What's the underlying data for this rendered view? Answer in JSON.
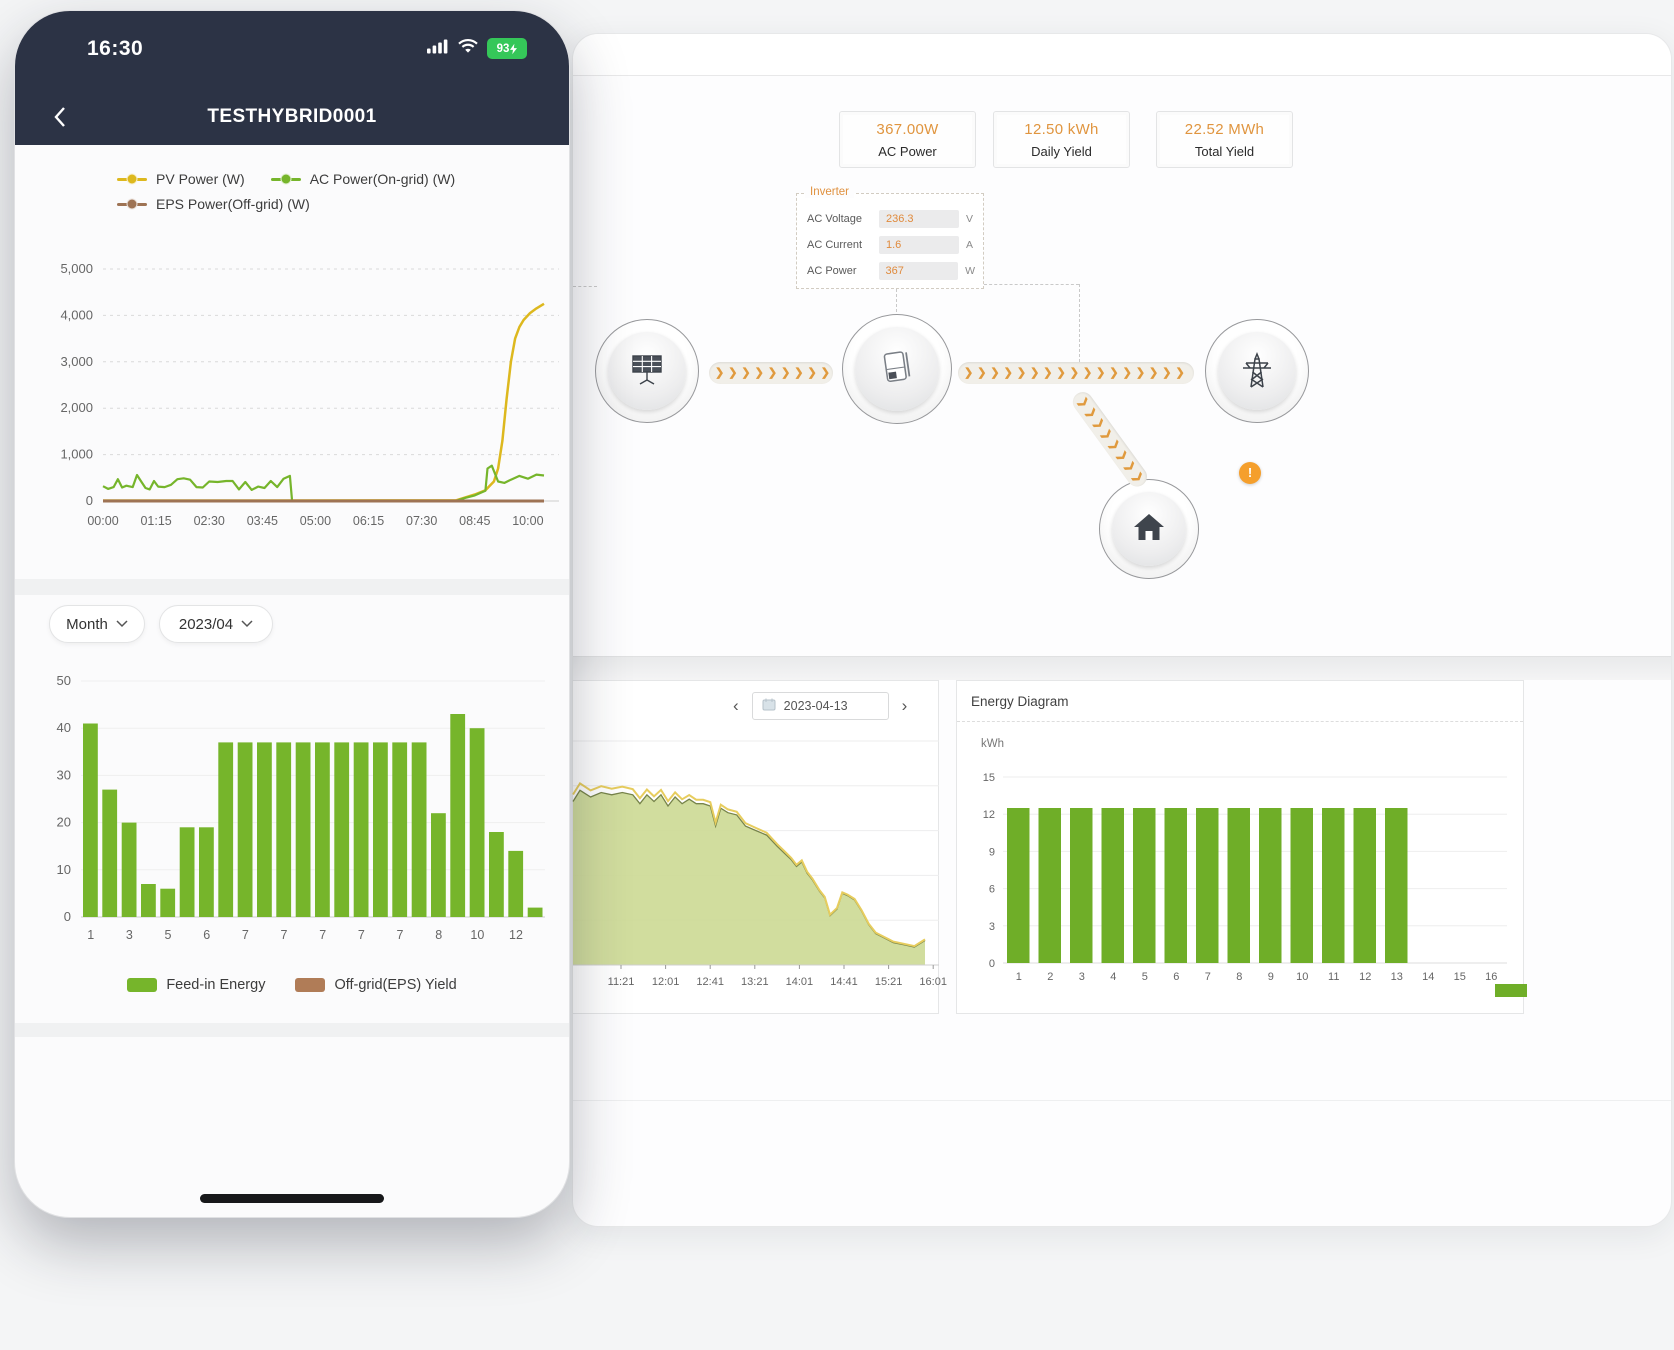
{
  "colors": {
    "app_green": "#76b52b",
    "pv_yellow": "#ddb81e",
    "eps_brown": "#9e7354",
    "value_orange": "#e0953f",
    "dark_navy": "#2c3345",
    "battery_green": "#35c759",
    "warning_orange": "#f59f2c"
  },
  "phone": {
    "status": {
      "time": "16:30",
      "battery_percent": "93"
    },
    "header": {
      "title": "TESTHYBRID0001"
    },
    "controls": {
      "period": "Month",
      "month": "2023/04"
    }
  },
  "desktop": {
    "stats": [
      {
        "value": "367.00W",
        "label": "AC Power"
      },
      {
        "value": "12.50 kWh",
        "label": "Daily Yield"
      },
      {
        "value": "22.52 MWh",
        "label": "Total Yield"
      }
    ],
    "inverter": {
      "title": "Inverter",
      "rows": [
        {
          "label": "AC Voltage",
          "value": "236.3",
          "unit": "V"
        },
        {
          "label": "AC Current",
          "value": "1.6",
          "unit": "A"
        },
        {
          "label": "AC Power",
          "value": "367",
          "unit": "W"
        }
      ]
    },
    "flow": {
      "nodes": [
        "solar-panels",
        "inverter",
        "power-grid",
        "home"
      ],
      "alert": "!"
    },
    "daily": {
      "date": "2023-04-13",
      "prev": "‹",
      "next": "›"
    }
  },
  "chart_data": [
    {
      "id": "pv-power-curve",
      "type": "line",
      "x_ticks": [
        "00:00",
        "01:15",
        "02:30",
        "03:45",
        "05:00",
        "06:15",
        "07:30",
        "08:45",
        "10:00"
      ],
      "x_range_hours": [
        0,
        10.45
      ],
      "ylim": [
        0,
        5000
      ],
      "yticks": [
        0,
        1000,
        2000,
        3000,
        4000,
        5000
      ],
      "ytick_labels": [
        "0",
        "1,000",
        "2,000",
        "3,000",
        "4,000",
        "5,000"
      ],
      "grid": "dashed-horizontal",
      "series": [
        {
          "name": "PV Power (W)",
          "color": "#ddb81e",
          "points": [
            [
              0,
              10
            ],
            [
              8.3,
              12
            ],
            [
              8.5,
              70
            ],
            [
              8.75,
              140
            ],
            [
              9,
              230
            ],
            [
              9.2,
              420
            ],
            [
              9.3,
              700
            ],
            [
              9.4,
              1300
            ],
            [
              9.5,
              2200
            ],
            [
              9.6,
              3000
            ],
            [
              9.7,
              3500
            ],
            [
              9.8,
              3750
            ],
            [
              9.9,
              3900
            ],
            [
              10.05,
              4050
            ],
            [
              10.2,
              4150
            ],
            [
              10.38,
              4250
            ]
          ]
        },
        {
          "name": "AC Power(On-grid) (W)",
          "color": "#76b52b",
          "points": [
            [
              0,
              320
            ],
            [
              0.12,
              260
            ],
            [
              0.25,
              300
            ],
            [
              0.35,
              470
            ],
            [
              0.45,
              290
            ],
            [
              0.55,
              330
            ],
            [
              0.7,
              300
            ],
            [
              0.8,
              560
            ],
            [
              0.9,
              420
            ],
            [
              1,
              280
            ],
            [
              1.1,
              250
            ],
            [
              1.2,
              430
            ],
            [
              1.3,
              310
            ],
            [
              1.45,
              300
            ],
            [
              1.6,
              350
            ],
            [
              1.75,
              470
            ],
            [
              1.9,
              490
            ],
            [
              2.05,
              460
            ],
            [
              2.2,
              300
            ],
            [
              2.35,
              290
            ],
            [
              2.5,
              420
            ],
            [
              2.7,
              410
            ],
            [
              2.9,
              430
            ],
            [
              3.05,
              430
            ],
            [
              3.2,
              250
            ],
            [
              3.35,
              410
            ],
            [
              3.5,
              240
            ],
            [
              3.65,
              310
            ],
            [
              3.8,
              280
            ],
            [
              3.95,
              430
            ],
            [
              4.1,
              300
            ],
            [
              4.25,
              480
            ],
            [
              4.4,
              540
            ],
            [
              4.45,
              0
            ],
            [
              8.3,
              0
            ],
            [
              8.5,
              60
            ],
            [
              8.75,
              120
            ],
            [
              9,
              220
            ],
            [
              9.05,
              700
            ],
            [
              9.15,
              760
            ],
            [
              9.3,
              420
            ],
            [
              9.45,
              390
            ],
            [
              9.6,
              460
            ],
            [
              9.8,
              540
            ],
            [
              10,
              480
            ],
            [
              10.2,
              570
            ],
            [
              10.38,
              550
            ]
          ]
        },
        {
          "name": "EPS Power(Off-grid) (W)",
          "color": "#9e7354",
          "points": [
            [
              0,
              0
            ],
            [
              10.38,
              0
            ]
          ]
        }
      ]
    },
    {
      "id": "monthly-yield-bars",
      "type": "bar",
      "ylim": [
        0,
        50
      ],
      "yticks": [
        0,
        10,
        20,
        30,
        40,
        50
      ],
      "values": [
        41,
        27,
        20,
        7,
        6,
        19,
        19,
        37,
        37,
        37,
        37,
        37,
        37,
        37,
        37,
        37,
        37,
        37,
        22,
        43,
        40,
        18,
        14,
        2
      ],
      "x_tick_labels": [
        "1",
        "3",
        "5",
        "6",
        "7",
        "7",
        "7",
        "7",
        "7",
        "8",
        "10",
        "12"
      ],
      "x_tick_every": 2,
      "bar_color": "#76b52b",
      "legend": [
        {
          "label": "Feed-in Energy",
          "color": "#76b52b"
        },
        {
          "label": "Off-grid(EPS) Yield",
          "color": "#b07c57"
        }
      ]
    },
    {
      "id": "daily-power-area",
      "type": "area",
      "x_tick_labels": [
        "11:21",
        "12:01",
        "12:41",
        "13:21",
        "14:01",
        "14:41",
        "15:21",
        "16:01"
      ],
      "y_axis_visible": false,
      "fill_color": "#ccd993",
      "line_color": "#e7cd5e",
      "edge_color": "#77844a",
      "points_pct": [
        [
          0,
          73
        ],
        [
          0.02,
          78
        ],
        [
          0.05,
          75
        ],
        [
          0.08,
          77
        ],
        [
          0.11,
          76
        ],
        [
          0.14,
          77
        ],
        [
          0.17,
          76
        ],
        [
          0.19,
          72
        ],
        [
          0.21,
          76
        ],
        [
          0.23,
          73
        ],
        [
          0.25,
          76
        ],
        [
          0.27,
          71
        ],
        [
          0.29,
          75
        ],
        [
          0.31,
          72
        ],
        [
          0.33,
          74
        ],
        [
          0.35,
          72
        ],
        [
          0.37,
          72
        ],
        [
          0.39,
          71
        ],
        [
          0.405,
          62
        ],
        [
          0.42,
          70
        ],
        [
          0.44,
          68
        ],
        [
          0.465,
          67
        ],
        [
          0.49,
          62
        ],
        [
          0.52,
          60
        ],
        [
          0.55,
          58
        ],
        [
          0.58,
          53
        ],
        [
          0.6,
          50
        ],
        [
          0.62,
          47
        ],
        [
          0.635,
          44
        ],
        [
          0.65,
          46
        ],
        [
          0.665,
          41
        ],
        [
          0.68,
          38
        ],
        [
          0.7,
          33
        ],
        [
          0.715,
          30
        ],
        [
          0.73,
          22
        ],
        [
          0.75,
          25
        ],
        [
          0.765,
          32
        ],
        [
          0.78,
          31
        ],
        [
          0.8,
          29
        ],
        [
          0.82,
          24
        ],
        [
          0.84,
          18
        ],
        [
          0.86,
          14
        ],
        [
          0.885,
          12
        ],
        [
          0.91,
          10
        ],
        [
          0.94,
          9
        ],
        [
          0.97,
          8
        ],
        [
          1,
          11
        ]
      ]
    },
    {
      "id": "energy-diagram",
      "type": "bar",
      "title": "Energy Diagram",
      "ylabel": "kWh",
      "ylim": [
        0,
        15
      ],
      "yticks": [
        0,
        3,
        6,
        9,
        12,
        15
      ],
      "categories": [
        "1",
        "2",
        "3",
        "4",
        "5",
        "6",
        "7",
        "8",
        "9",
        "10",
        "11",
        "12",
        "13",
        "14",
        "15",
        "16"
      ],
      "values": [
        12.5,
        12.5,
        12.5,
        12.5,
        12.5,
        12.5,
        12.5,
        12.5,
        12.5,
        12.5,
        12.5,
        12.5,
        12.5,
        null,
        null,
        null
      ],
      "bar_color": "#6fae28"
    }
  ]
}
